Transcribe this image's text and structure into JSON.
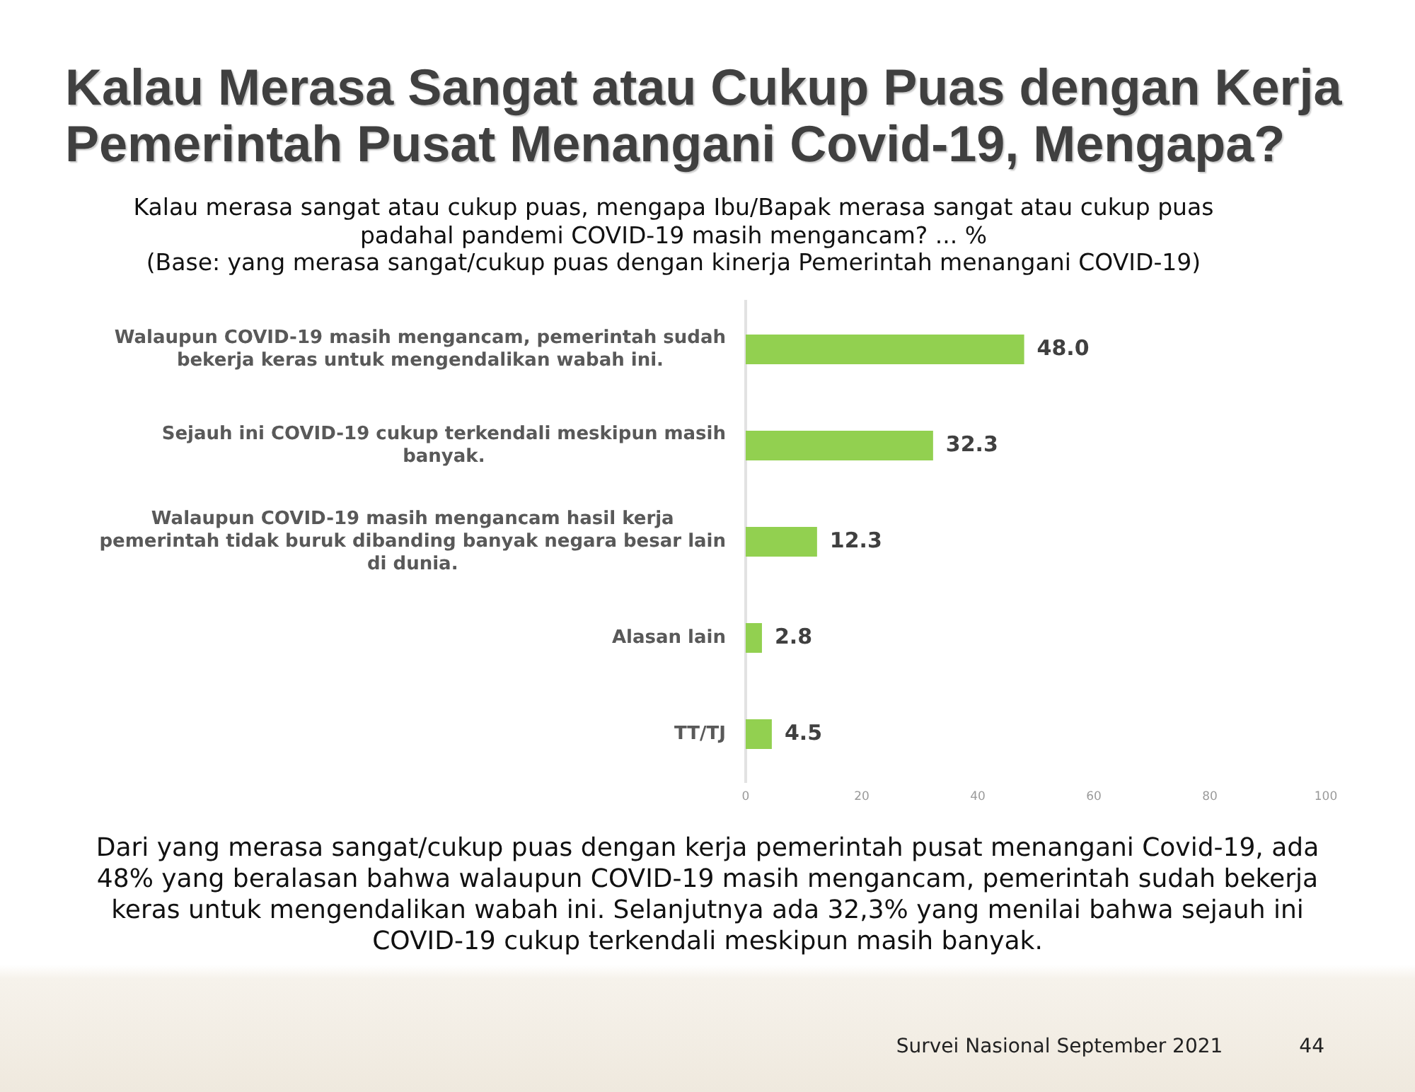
{
  "chart_data": {
    "type": "bar",
    "orientation": "horizontal",
    "title": "Kalau Merasa Sangat atau Cukup Puas dengan Kerja Pemerintah Pusat Menangani Covid-19, Mengapa?",
    "subtitle": "Kalau merasa sangat atau cukup puas, mengapa Ibu/Bapak merasa sangat atau cukup puas padahal pandemi COVID-19 masih mengancam? ... %\n(Base: yang merasa sangat/cukup puas dengan kinerja Pemerintah menangani COVID-19)",
    "categories": [
      "Walaupun COVID-19 masih mengancam, pemerintah sudah bekerja keras untuk mengendalikan wabah ini.",
      "Sejauh ini COVID-19 cukup terkendali meskipun masih banyak.",
      "Walaupun COVID-19 masih mengancam hasil kerja pemerintah tidak buruk dibanding banyak negara besar lain di dunia.",
      "Alasan lain",
      "TT/TJ"
    ],
    "values": [
      48.0,
      32.3,
      12.3,
      2.8,
      4.5
    ],
    "value_labels": [
      "48.0",
      "32.3",
      "12.3",
      "2.8",
      "4.5"
    ],
    "color": "#92d050",
    "xlim": [
      0,
      100
    ],
    "xticks": [
      0,
      20,
      40,
      60,
      80,
      100
    ],
    "annotations": [
      "Dari yang merasa sangat/cukup puas dengan kerja pemerintah pusat menangani Covid-19, ada 48% yang beralasan bahwa walaupun COVID-19 masih mengancam, pemerintah sudah bekerja keras untuk mengendalikan wabah ini. Selanjutnya ada 32,3% yang menilai bahwa sejauh ini COVID-19 cukup terkendali meskipun masih banyak.",
      "Survei Nasional September 2021",
      "44"
    ]
  }
}
